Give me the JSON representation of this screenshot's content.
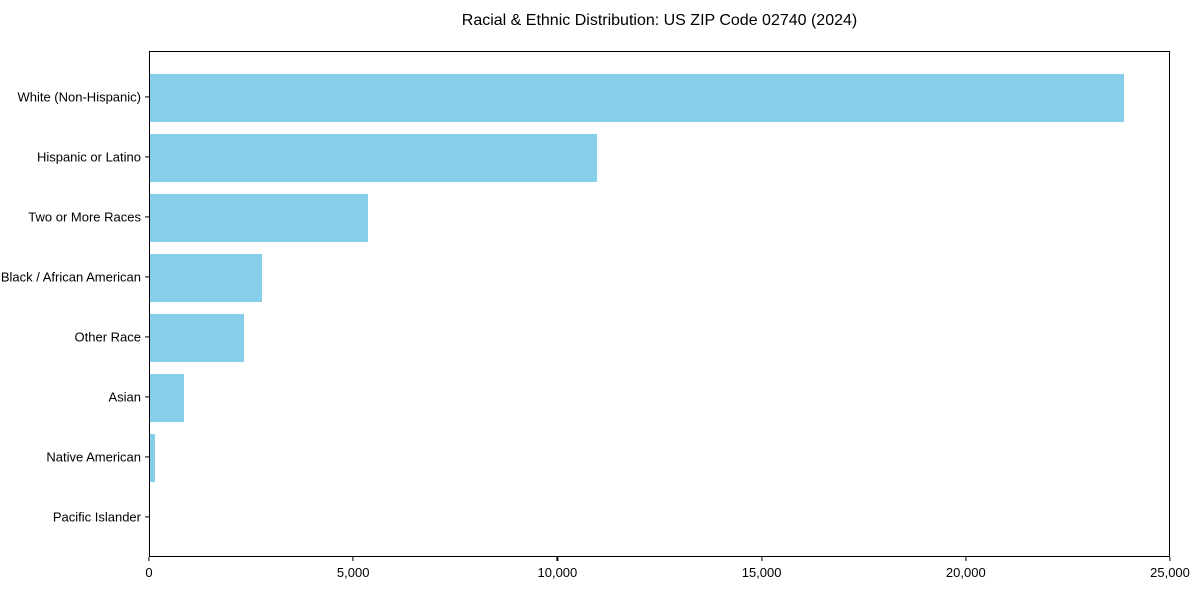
{
  "chart_data": {
    "type": "bar",
    "orientation": "horizontal",
    "title": "Racial & Ethnic Distribution: US ZIP Code 02740 (2024)",
    "categories": [
      "White (Non-Hispanic)",
      "Hispanic or Latino",
      "Two or More Races",
      "Black / African American",
      "Other Race",
      "Asian",
      "Native American",
      "Pacific Islander"
    ],
    "values": [
      23900,
      10970,
      5360,
      2740,
      2300,
      830,
      120,
      0
    ],
    "xlabel": "",
    "ylabel": "",
    "xlim": [
      0,
      25000
    ],
    "x_ticks": [
      0,
      5000,
      10000,
      15000,
      20000,
      25000
    ],
    "x_tick_labels": [
      "0",
      "5,000",
      "10,000",
      "15,000",
      "20,000",
      "25,000"
    ],
    "bar_color": "#87CEEB",
    "text_color": "#000000",
    "grid": false,
    "legend": false
  }
}
